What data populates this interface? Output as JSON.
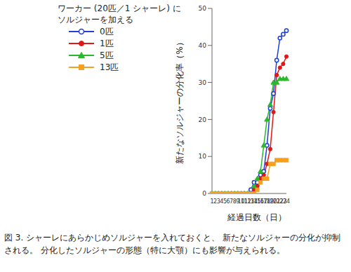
{
  "chart_data": {
    "type": "line",
    "y_label": "新たなソルジャーの分化率（%）",
    "x_label": "経過日数（日）",
    "caption": "図 3. シャーレにあらかじめソルジャーを入れておくと、 新たなソルジャーの分化が抑制される。 分化したソルジャーの形態（特に大顎）にも影響が与えられる。",
    "legend_title": [
      "ワーカー (20匹／1 シャーレ) に",
      "ソルジャーを加える"
    ],
    "legend": "upper left",
    "categories": [
      "1",
      "2",
      "3",
      "4",
      "5",
      "6",
      "7",
      "8",
      "9",
      "10",
      "11",
      "12",
      "13",
      "14",
      "15",
      "16",
      "17",
      "18",
      "19",
      "20",
      "21",
      "22",
      "23",
      "24"
    ],
    "ylim": [
      0,
      50
    ],
    "yticks": [
      0,
      10,
      20,
      30,
      40,
      50
    ],
    "grid": false,
    "series": [
      {
        "name": "0匹",
        "color": "#1f3fd6",
        "marker": "circle_open",
        "values": [
          0,
          0,
          0,
          0,
          0,
          0,
          0,
          0,
          0,
          0,
          0,
          0,
          1,
          3,
          3,
          5,
          6,
          13,
          23,
          27,
          36,
          42,
          43,
          44
        ]
      },
      {
        "name": "1匹",
        "color": "#e01818",
        "marker": "circle",
        "values": [
          0,
          0,
          0,
          0,
          0,
          0,
          0,
          0,
          0,
          0,
          0,
          0,
          0,
          1,
          2,
          4,
          5,
          8,
          12,
          22,
          32,
          34,
          35,
          37
        ]
      },
      {
        "name": "5匹",
        "color": "#2cb82c",
        "marker": "triangle",
        "values": [
          0,
          0,
          0,
          0,
          0,
          0,
          0,
          0,
          0,
          0,
          0,
          0,
          0,
          2,
          4,
          6,
          13,
          20,
          24,
          30,
          30,
          31,
          31,
          31
        ]
      },
      {
        "name": "13匹",
        "color": "#f5a020",
        "marker": "square",
        "values": [
          0,
          0,
          0,
          0,
          0,
          0,
          0,
          0,
          0,
          0,
          0,
          0,
          0,
          0,
          1,
          3,
          4,
          4,
          8,
          8,
          9,
          9,
          9,
          9
        ]
      }
    ]
  }
}
